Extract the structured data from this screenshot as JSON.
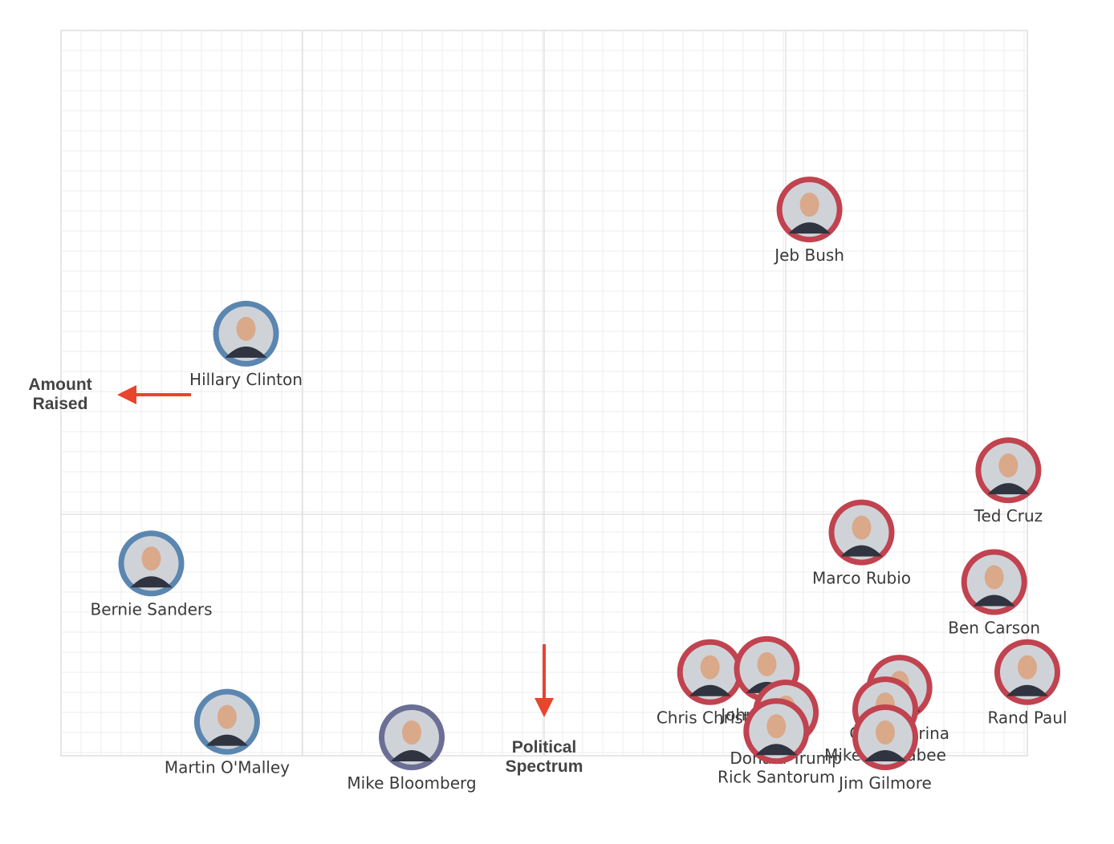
{
  "chart_data": {
    "type": "scatter",
    "x_axis_label": "Political Spectrum",
    "y_axis_label_lines": [
      "Amount",
      "Raised"
    ],
    "xlim": [
      0,
      100
    ],
    "ylim": [
      0,
      100
    ],
    "grid": true,
    "colors": {
      "democrat": "#5b86b0",
      "republican": "#c0434f",
      "independent": "#6b6f95",
      "arrow": "#e8452c",
      "grid_minor": "#eeeeee",
      "grid_major": "#dddddd"
    },
    "points": [
      {
        "name": "Jeb Bush",
        "party": "republican",
        "x": 77,
        "y": 85,
        "label_pos": "below"
      },
      {
        "name": "Hillary Clinton",
        "party": "democrat",
        "x": 17.5,
        "y": 65,
        "label_pos": "below"
      },
      {
        "name": "Ted Cruz",
        "party": "republican",
        "x": 98,
        "y": 43,
        "label_pos": "below"
      },
      {
        "name": "Marco Rubio",
        "party": "republican",
        "x": 82.5,
        "y": 33,
        "label_pos": "below"
      },
      {
        "name": "Bernie Sanders",
        "party": "democrat",
        "x": 7.5,
        "y": 28,
        "label_pos": "below"
      },
      {
        "name": "Ben Carson",
        "party": "republican",
        "x": 96.5,
        "y": 25,
        "label_pos": "below"
      },
      {
        "name": "Rand Paul",
        "party": "republican",
        "x": 100,
        "y": 10.5,
        "label_pos": "below"
      },
      {
        "name": "Chris Christie",
        "party": "republican",
        "x": 66.5,
        "y": 10.5,
        "label_pos": "below"
      },
      {
        "name": "John Kasich",
        "party": "republican",
        "x": 72.5,
        "y": 11,
        "label_pos": "below"
      },
      {
        "name": "Carly Fiorina",
        "party": "republican",
        "x": 86.5,
        "y": 8,
        "label_pos": "below"
      },
      {
        "name": "Mike Huckabee",
        "party": "republican",
        "x": 85,
        "y": 4.5,
        "label_pos": "below"
      },
      {
        "name": "Donald Trump",
        "party": "republican",
        "x": 74.5,
        "y": 4,
        "label_pos": "below"
      },
      {
        "name": "Rick Santorum",
        "party": "republican",
        "x": 73.5,
        "y": 1,
        "label_pos": "below"
      },
      {
        "name": "Jim Gilmore",
        "party": "republican",
        "x": 85,
        "y": 0,
        "label_pos": "below"
      },
      {
        "name": "Martin O'Malley",
        "party": "democrat",
        "x": 15.5,
        "y": 2.5,
        "label_pos": "below"
      },
      {
        "name": "Mike Bloomberg",
        "party": "independent",
        "x": 35,
        "y": 0,
        "label_pos": "below"
      }
    ]
  }
}
